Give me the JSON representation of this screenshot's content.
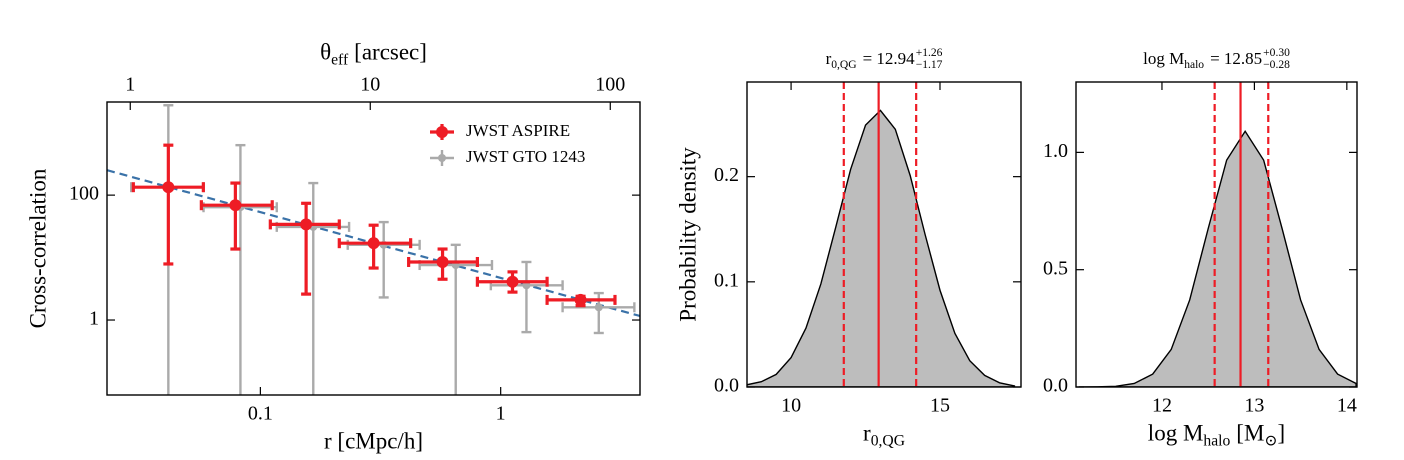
{
  "chart_data": [
    {
      "type": "errorbar",
      "xscale": "log",
      "yscale": "log",
      "xlabel": "r [cMpc/h]",
      "ylabel": "Cross-correlation",
      "x2label": [
        {
          "t": "θ"
        },
        {
          "t": "eff",
          "s": "sub"
        },
        {
          "t": "[arcsec]"
        }
      ],
      "xlim": [
        0.023,
        3.8
      ],
      "xticks": [
        0.1,
        1
      ],
      "ylim": [
        0.063,
        3100
      ],
      "yticks": [
        1,
        100
      ],
      "x2lim": [
        0.8,
        133
      ],
      "x2ticks": [
        1,
        10,
        100
      ],
      "legend": "upper right",
      "series": [
        {
          "name": "JWST GTO 1243",
          "color": "#aaaaaa",
          "x": [
            0.0414,
            0.0826,
            0.166,
            0.326,
            0.65,
            1.28,
            2.56
          ],
          "values": [
            134,
            64,
            31,
            16,
            7.6,
            3.6,
            1.6
          ],
          "xlow": [
            0.029,
            0.058,
            0.117,
            0.231,
            0.46,
            0.91,
            1.81
          ],
          "xhigh": [
            0.058,
            0.117,
            0.234,
            0.46,
            0.92,
            1.81,
            3.6
          ],
          "ylow": [
            0.01,
            0.01,
            0.01,
            2.3,
            0.01,
            0.64,
            0.62
          ],
          "yhigh": [
            2750,
            631,
            156,
            37,
            16,
            8.5,
            2.7
          ]
        },
        {
          "name": "JWST ASPIRE",
          "color": "#ee1c25",
          "x": [
            0.0414,
            0.0787,
            0.155,
            0.296,
            0.573,
            1.12,
            2.15
          ],
          "values": [
            134,
            69,
            34,
            17,
            8.5,
            4.1,
            2.1
          ],
          "xlow": [
            0.0296,
            0.0568,
            0.11,
            0.213,
            0.414,
            0.8,
            1.56
          ],
          "xhigh": [
            0.0579,
            0.112,
            0.213,
            0.422,
            0.8,
            1.56,
            2.99
          ],
          "ylow": [
            7.9,
            13.7,
            2.6,
            6.8,
            4.5,
            2.8,
            1.7
          ],
          "yhigh": [
            631,
            156,
            74,
            33,
            13.7,
            5.9,
            2.4
          ]
        }
      ],
      "fit": {
        "color": "#3a72a8",
        "x": [
          0.023,
          3.8
        ],
        "values": [
          251,
          1.16
        ]
      }
    },
    {
      "type": "area",
      "title": [
        {
          "t": "r"
        },
        {
          "t": "0,QG",
          "s": "sub"
        },
        {
          "t": "= 12.94"
        },
        {
          "t": "+1.26",
          "s": "sup"
        },
        {
          "t": "−1.17",
          "s": "sub"
        }
      ],
      "xlabel": [
        {
          "t": "r"
        },
        {
          "t": "0,QG",
          "s": "sub"
        }
      ],
      "ylabel": "Probability density",
      "x": [
        8.5,
        9.0,
        9.5,
        10.0,
        10.5,
        11.0,
        11.5,
        12.0,
        12.5,
        13.0,
        13.5,
        14.0,
        14.5,
        15.0,
        15.5,
        16.0,
        16.5,
        17.0,
        17.5
      ],
      "values": [
        0.002,
        0.005,
        0.012,
        0.028,
        0.056,
        0.098,
        0.152,
        0.207,
        0.249,
        0.263,
        0.245,
        0.201,
        0.145,
        0.092,
        0.051,
        0.025,
        0.011,
        0.004,
        0.001
      ],
      "color": "#bdbdbd",
      "line_color": "#ee1c25",
      "median": 12.94,
      "interval": [
        11.77,
        14.2
      ],
      "xlim": [
        8.52,
        17.72
      ],
      "xticks": [
        10,
        15
      ],
      "ylim": [
        0,
        0.29
      ],
      "yticks": [
        {
          "value": 0,
          "label": "0.0"
        },
        0.1,
        0.2
      ]
    },
    {
      "type": "area",
      "title": [
        {
          "t": "log M"
        },
        {
          "t": "halo",
          "s": "sub"
        },
        {
          "t": "= 12.85"
        },
        {
          "t": "+0.30",
          "s": "sup"
        },
        {
          "t": "−0.28",
          "s": "sub"
        }
      ],
      "xlabel": [
        {
          "t": "log M"
        },
        {
          "t": "halo",
          "s": "sub"
        },
        {
          "t": "[M"
        },
        {
          "t": "⊙",
          "s": "sub"
        },
        {
          "t": "]"
        }
      ],
      "x": [
        11.1,
        11.3,
        11.5,
        11.7,
        11.9,
        12.1,
        12.3,
        12.5,
        12.7,
        12.9,
        13.1,
        13.3,
        13.5,
        13.7,
        13.9,
        14.1
      ],
      "values": [
        0,
        0.001,
        0.003,
        0.015,
        0.055,
        0.16,
        0.371,
        0.675,
        0.967,
        1.09,
        0.967,
        0.675,
        0.371,
        0.16,
        0.055,
        0.015
      ],
      "color": "#bdbdbd",
      "line_color": "#ee1c25",
      "median": 12.85,
      "interval": [
        12.57,
        13.15
      ],
      "xlim": [
        11.07,
        14.11
      ],
      "xticks": [
        12,
        13,
        14
      ],
      "ylim": [
        0,
        1.3
      ],
      "yticks": [
        {
          "value": 0,
          "label": "0.0"
        },
        0.5,
        {
          "value": 1,
          "label": "1.0"
        }
      ]
    }
  ]
}
